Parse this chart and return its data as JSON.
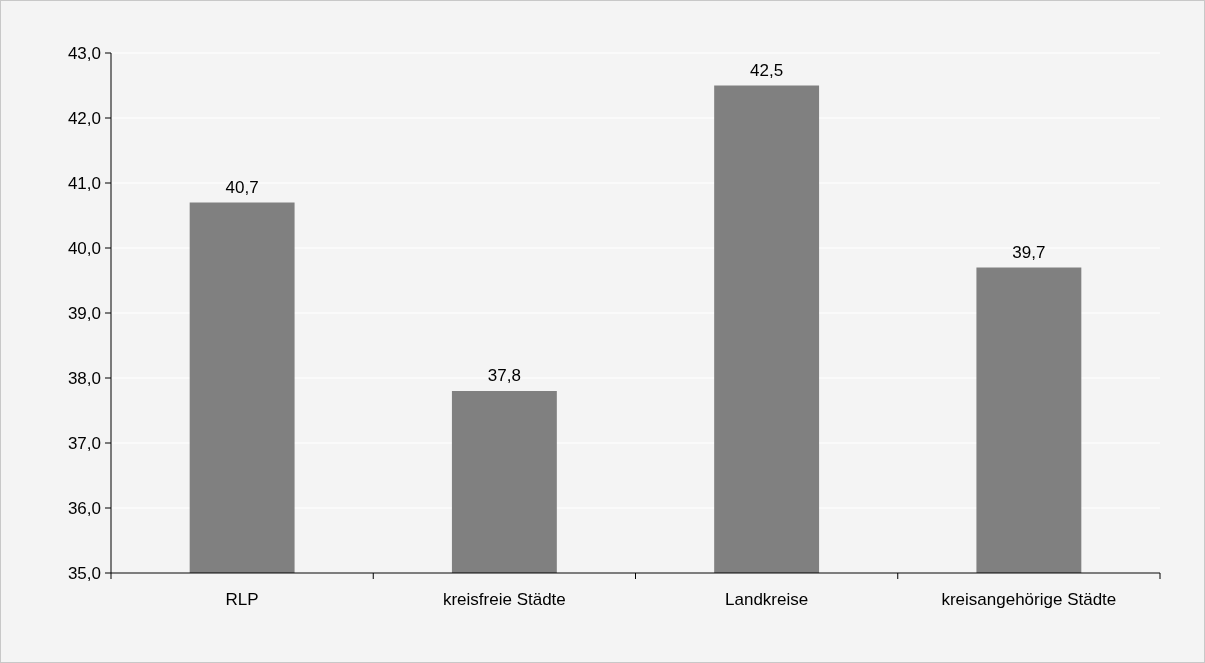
{
  "chart_data": {
    "type": "bar",
    "categories": [
      "RLP",
      "kreisfreie Städte",
      "Landkreise",
      "kreisangehörige Städte"
    ],
    "values": [
      40.7,
      37.8,
      42.5,
      39.7
    ],
    "value_labels": [
      "40,7",
      "37,8",
      "42,5",
      "39,7"
    ],
    "color": "#808080",
    "ylim": [
      35,
      43
    ],
    "yticks": [
      {
        "value": 35,
        "label": "35,0"
      },
      {
        "value": 36,
        "label": "36,0"
      },
      {
        "value": 37,
        "label": "37,0"
      },
      {
        "value": 38,
        "label": "38,0"
      },
      {
        "value": 39,
        "label": "39,0"
      },
      {
        "value": 40,
        "label": "40,0"
      },
      {
        "value": 41,
        "label": "41,0"
      },
      {
        "value": 42,
        "label": "42,0"
      },
      {
        "value": 43,
        "label": "43,0"
      }
    ],
    "grid": "y"
  }
}
